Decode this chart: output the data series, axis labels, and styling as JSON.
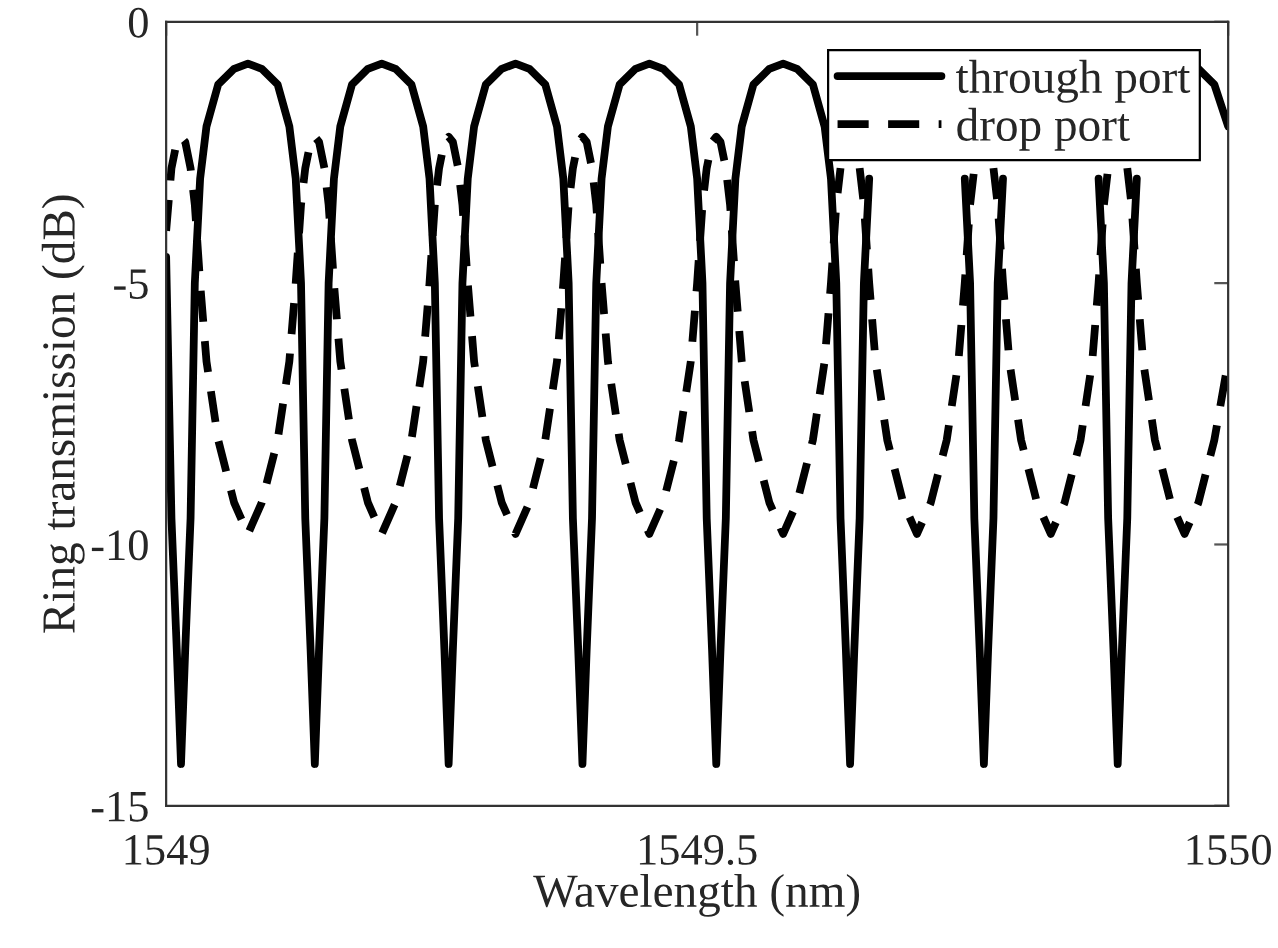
{
  "chart_data": {
    "type": "line",
    "xlabel": "Wavelength (nm)",
    "ylabel": "Ring transmission (dB)",
    "xlim": [
      1549,
      1550
    ],
    "xticks": [
      1549,
      1549.5,
      1550
    ],
    "ylim": [
      -15,
      0
    ],
    "yticks": [
      -15,
      -10,
      -5,
      0
    ],
    "grid": false,
    "legend": "top right",
    "marker": "none",
    "x": [
      1549,
      1549.005,
      1549.01,
      1549.014,
      1549.018,
      1549.023,
      1549.027,
      1549.032,
      1549.038,
      1549.049,
      1549.064,
      1549.077,
      1549.09,
      1549.105,
      1549.116,
      1549.122,
      1549.127,
      1549.131,
      1549.136,
      1549.14,
      1549.144,
      1549.149,
      1549.153,
      1549.158,
      1549.164,
      1549.175,
      1549.19,
      1549.203,
      1549.216,
      1549.231,
      1549.242,
      1549.248,
      1549.253,
      1549.257,
      1549.262,
      1549.266,
      1549.27,
      1549.275,
      1549.279,
      1549.284,
      1549.29,
      1549.301,
      1549.316,
      1549.329,
      1549.342,
      1549.357,
      1549.368,
      1549.374,
      1549.379,
      1549.383,
      1549.388,
      1549.392,
      1549.396,
      1549.401,
      1549.405,
      1549.41,
      1549.416,
      1549.427,
      1549.442,
      1549.455,
      1549.468,
      1549.483,
      1549.494,
      1549.5,
      1549.505,
      1549.509,
      1549.514,
      1549.518,
      1549.522,
      1549.527,
      1549.531,
      1549.536,
      1549.542,
      1549.553,
      1549.568,
      1549.581,
      1549.594,
      1549.609,
      1549.62,
      1549.626,
      1549.631,
      1549.635,
      1549.64,
      1549.644,
      1549.648,
      1549.653,
      1549.657,
      1549.662,
      1549.668,
      1549.679,
      1549.694,
      1549.707,
      1549.72,
      1549.735,
      1549.746,
      1549.752,
      1549.757,
      1549.761,
      1549.766,
      1549.77,
      1549.774,
      1549.779,
      1549.783,
      1549.788,
      1549.794,
      1549.805,
      1549.82,
      1549.833,
      1549.846,
      1549.861,
      1549.872,
      1549.878,
      1549.883,
      1549.887,
      1549.892,
      1549.896,
      1549.9,
      1549.905,
      1549.909,
      1549.914,
      1549.92,
      1549.931,
      1549.946,
      1549.959,
      1549.972,
      1549.987,
      1550
    ],
    "series": [
      {
        "name": "through port",
        "color": "#000000",
        "line_style": "solid",
        "values": [
          -4.5,
          -9.5,
          -12,
          -14.2,
          -12,
          -9.5,
          -5,
          -3,
          -2,
          -1.2,
          -0.9,
          -0.8,
          -0.9,
          -1.2,
          -2,
          -3,
          -5,
          -9.5,
          -12,
          -14.2,
          -12,
          -9.5,
          -5,
          -3,
          -2,
          -1.2,
          -0.9,
          -0.8,
          -0.9,
          -1.2,
          -2,
          -3,
          -5,
          -9.5,
          -12,
          -14.2,
          -12,
          -9.5,
          -5,
          -3,
          -2,
          -1.2,
          -0.9,
          -0.8,
          -0.9,
          -1.2,
          -2,
          -3,
          -5,
          -9.5,
          -12,
          -14.2,
          -12,
          -9.5,
          -5,
          -3,
          -2,
          -1.2,
          -0.9,
          -0.8,
          -0.9,
          -1.2,
          -2,
          -3,
          -5,
          -9.5,
          -12,
          -14.2,
          -12,
          -9.5,
          -5,
          -3,
          -2,
          -1.2,
          -0.9,
          -0.8,
          -0.9,
          -1.2,
          -2,
          -3,
          -5,
          -9.5,
          -12,
          -14.2,
          -12,
          -9.5,
          -5,
          -3,
          null,
          null,
          null,
          null,
          null,
          null,
          null,
          -3,
          -5,
          -9.5,
          -12,
          -14.2,
          -12,
          -9.5,
          -5,
          -3,
          null,
          null,
          null,
          null,
          null,
          null,
          null,
          -3,
          -5,
          -9.5,
          -12,
          -14.2,
          -12,
          -9.5,
          -5,
          -3,
          null,
          null,
          null,
          null,
          -0.9,
          -1.2,
          -2
        ]
      },
      {
        "name": "drop port",
        "color": "#000000",
        "line_style": "dashed",
        "values": [
          -4,
          -2.8,
          -2.3,
          -2.2,
          -2.3,
          -2.8,
          -3.5,
          -5,
          -6.5,
          -8,
          -9.2,
          -9.8,
          -9.2,
          -8,
          -6.5,
          -5,
          -3.5,
          -2.8,
          -2.3,
          -2.2,
          -2.3,
          -2.8,
          -3.5,
          -5,
          -6.5,
          -8,
          -9.2,
          -9.8,
          -9.2,
          -8,
          -6.5,
          -5,
          -3.5,
          -2.8,
          -2.3,
          -2.2,
          -2.3,
          -2.8,
          -3.5,
          -5,
          -6.5,
          -8,
          -9.2,
          -9.8,
          -9.2,
          -8,
          -6.5,
          -5,
          -3.5,
          -2.8,
          -2.3,
          -2.2,
          -2.3,
          -2.8,
          -3.5,
          -5,
          -6.5,
          -8,
          -9.2,
          -9.8,
          -9.2,
          -8,
          -6.5,
          -5,
          -3.5,
          -2.8,
          -2.3,
          -2.2,
          -2.3,
          -2.8,
          -3.5,
          -5,
          -6.5,
          -8,
          -9.2,
          -9.8,
          -9.2,
          -8,
          -6.5,
          -5,
          -3.5,
          -2.8,
          null,
          null,
          null,
          -2.8,
          -3.5,
          -5,
          -6.5,
          -8,
          -9.2,
          -9.8,
          -9.2,
          -8,
          -6.5,
          -5,
          -3.5,
          -2.8,
          null,
          null,
          null,
          -2.8,
          -3.5,
          -5,
          -6.5,
          -8,
          -9.2,
          -9.8,
          -9.2,
          -8,
          -6.5,
          -5,
          -3.5,
          -2.8,
          null,
          null,
          null,
          -2.8,
          -3.5,
          -5,
          -6.5,
          -8,
          -9.2,
          -9.8,
          -9.2,
          -8,
          -6.5
        ]
      }
    ]
  }
}
